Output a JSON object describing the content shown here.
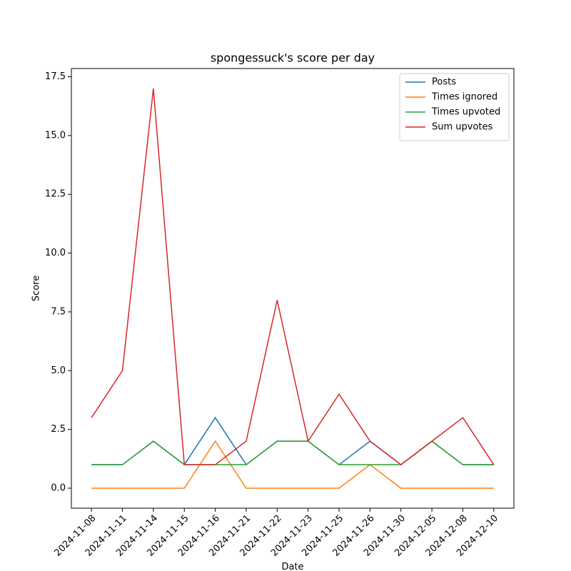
{
  "chart_data": {
    "type": "line",
    "title": "spongessuck's score per day",
    "x_label": "Date",
    "y_label": "Score",
    "categories": [
      "2024-11-08",
      "2024-11-11",
      "2024-11-14",
      "2024-11-15",
      "2024-11-16",
      "2024-11-21",
      "2024-11-22",
      "2024-11-23",
      "2024-11-25",
      "2024-11-26",
      "2024-11-30",
      "2024-12-05",
      "2024-12-08",
      "2024-12-10"
    ],
    "series": [
      {
        "name": "Posts",
        "color": "#1f77b4",
        "values": [
          1,
          1,
          2,
          1,
          3,
          1,
          2,
          2,
          1,
          2,
          1,
          2,
          1,
          1
        ]
      },
      {
        "name": "Times ignored",
        "color": "#ff7f0e",
        "values": [
          0,
          0,
          0,
          0,
          2,
          0,
          0,
          0,
          0,
          1,
          0,
          0,
          0,
          0
        ]
      },
      {
        "name": "Times upvoted",
        "color": "#2ca02c",
        "values": [
          1,
          1,
          2,
          1,
          1,
          1,
          2,
          2,
          1,
          1,
          1,
          2,
          1,
          1
        ]
      },
      {
        "name": "Sum upvotes",
        "color": "#d62728",
        "values": [
          3,
          5,
          17,
          1,
          1,
          2,
          8,
          2,
          4,
          2,
          1,
          2,
          3,
          1
        ]
      }
    ],
    "ylim": [
      -0.85,
      17.85
    ],
    "yticks": [
      {
        "value": 0,
        "label": "0.0"
      },
      2.5,
      {
        "value": 5,
        "label": "5.0"
      },
      7.5,
      {
        "value": 10,
        "label": "10.0"
      },
      12.5,
      {
        "value": 15,
        "label": "15.0"
      },
      17.5
    ],
    "grid": false,
    "legend": "upper right"
  }
}
